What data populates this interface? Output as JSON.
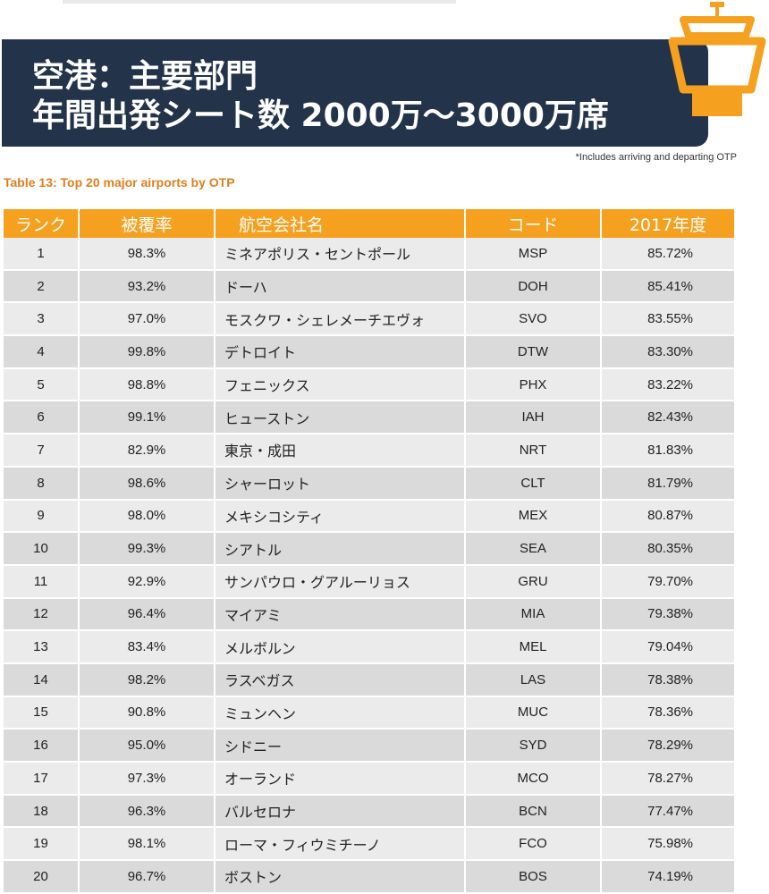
{
  "header": {
    "title_line1": "空港：主要部門",
    "title_line2": "年間出発シート数 2000万～3000万席",
    "footnote": "*Includes arriving and departing OTP",
    "table_caption": "Table 13: Top 20 major airports by OTP"
  },
  "colors": {
    "banner": "#22334a",
    "accent": "#f5a01e",
    "caption": "#e07e1c"
  },
  "table": {
    "headers": {
      "rank": "ランク",
      "coverage": "被覆率",
      "name": "航空会社名",
      "code": "コード",
      "score": "2017年度"
    },
    "rows": [
      {
        "rank": "1",
        "coverage": "98.3%",
        "name": "ミネアポリス・セントポール",
        "code": "MSP",
        "score": "85.72%"
      },
      {
        "rank": "2",
        "coverage": "93.2%",
        "name": "ドーハ",
        "code": "DOH",
        "score": "85.41%"
      },
      {
        "rank": "3",
        "coverage": "97.0%",
        "name": "モスクワ・シェレメーチエヴォ",
        "code": "SVO",
        "score": "83.55%"
      },
      {
        "rank": "4",
        "coverage": "99.8%",
        "name": "デトロイト",
        "code": "DTW",
        "score": "83.30%"
      },
      {
        "rank": "5",
        "coverage": "98.8%",
        "name": "フェニックス",
        "code": "PHX",
        "score": "83.22%"
      },
      {
        "rank": "6",
        "coverage": "99.1%",
        "name": "ヒューストン",
        "code": "IAH",
        "score": "82.43%"
      },
      {
        "rank": "7",
        "coverage": "82.9%",
        "name": "東京・成田",
        "code": "NRT",
        "score": "81.83%"
      },
      {
        "rank": "8",
        "coverage": "98.6%",
        "name": "シャーロット",
        "code": "CLT",
        "score": "81.79%"
      },
      {
        "rank": "9",
        "coverage": "98.0%",
        "name": "メキシコシティ",
        "code": "MEX",
        "score": "80.87%"
      },
      {
        "rank": "10",
        "coverage": "99.3%",
        "name": "シアトル",
        "code": "SEA",
        "score": "80.35%"
      },
      {
        "rank": "11",
        "coverage": "92.9%",
        "name": "サンパウロ・グアルーリョス",
        "code": "GRU",
        "score": "79.70%"
      },
      {
        "rank": "12",
        "coverage": "96.4%",
        "name": "マイアミ",
        "code": "MIA",
        "score": "79.38%"
      },
      {
        "rank": "13",
        "coverage": "83.4%",
        "name": "メルボルン",
        "code": "MEL",
        "score": "79.04%"
      },
      {
        "rank": "14",
        "coverage": "98.2%",
        "name": "ラスベガス",
        "code": "LAS",
        "score": "78.38%"
      },
      {
        "rank": "15",
        "coverage": "90.8%",
        "name": "ミュンヘン",
        "code": "MUC",
        "score": "78.36%"
      },
      {
        "rank": "16",
        "coverage": "95.0%",
        "name": "シドニー",
        "code": "SYD",
        "score": "78.29%"
      },
      {
        "rank": "17",
        "coverage": "97.3%",
        "name": "オーランド",
        "code": "MCO",
        "score": "78.27%"
      },
      {
        "rank": "18",
        "coverage": "96.3%",
        "name": "バルセロナ",
        "code": "BCN",
        "score": "77.47%"
      },
      {
        "rank": "19",
        "coverage": "98.1%",
        "name": "ローマ・フィウミチーノ",
        "code": "FCO",
        "score": "75.98%"
      },
      {
        "rank": "20",
        "coverage": "96.7%",
        "name": "ボストン",
        "code": "BOS",
        "score": "74.19%"
      }
    ]
  },
  "icons": {
    "tower": "control-tower-icon"
  }
}
